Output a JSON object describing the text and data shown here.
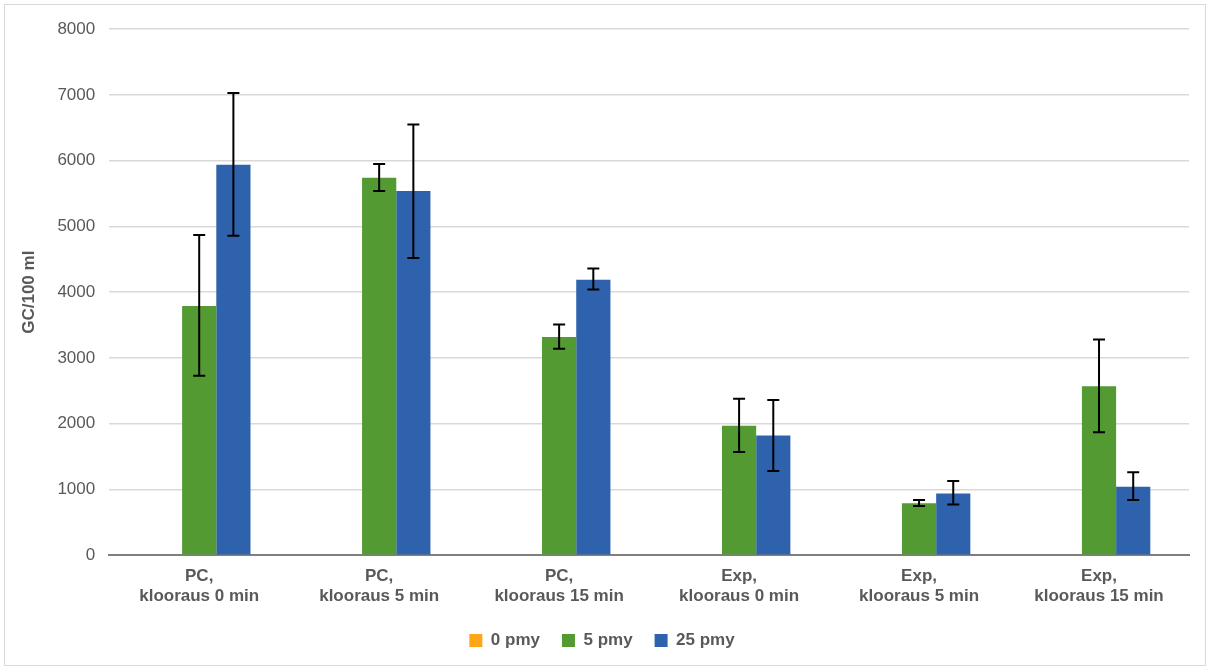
{
  "chart_data": {
    "type": "bar",
    "ylabel": "GC/100 ml",
    "categories": [
      "PC,\nklooraus 0 min",
      "PC,\nklooraus 5 min",
      "PC,\nklooraus 15 min",
      "Exp,\nklooraus 0 min",
      "Exp,\nklooraus 5 min",
      "Exp,\nklooraus 15 min"
    ],
    "series": [
      {
        "name": "0 pmy",
        "color": "#ffa617",
        "values": [
          null,
          null,
          null,
          null,
          null,
          null
        ]
      },
      {
        "name": "5 pmy",
        "color": "#529a31",
        "values": [
          3790,
          5740,
          3320,
          1970,
          790,
          2570
        ],
        "errors": [
          [
            2730,
            4870
          ],
          [
            5540,
            5950
          ],
          [
            3140,
            3510
          ],
          [
            1570,
            2380
          ],
          [
            750,
            840
          ],
          [
            1870,
            3280
          ]
        ]
      },
      {
        "name": "25 pmy",
        "color": "#2f62ad",
        "values": [
          5940,
          5540,
          4190,
          1820,
          940,
          1040
        ],
        "errors": [
          [
            4860,
            7030
          ],
          [
            4520,
            6550
          ],
          [
            4040,
            4360
          ],
          [
            1280,
            2360
          ],
          [
            770,
            1130
          ],
          [
            840,
            1260
          ]
        ]
      }
    ],
    "ylim": [
      0,
      8000
    ],
    "yticks": [
      0,
      1000,
      2000,
      3000,
      4000,
      5000,
      6000,
      7000,
      8000
    ],
    "grid": "y",
    "legend": "bottom"
  }
}
